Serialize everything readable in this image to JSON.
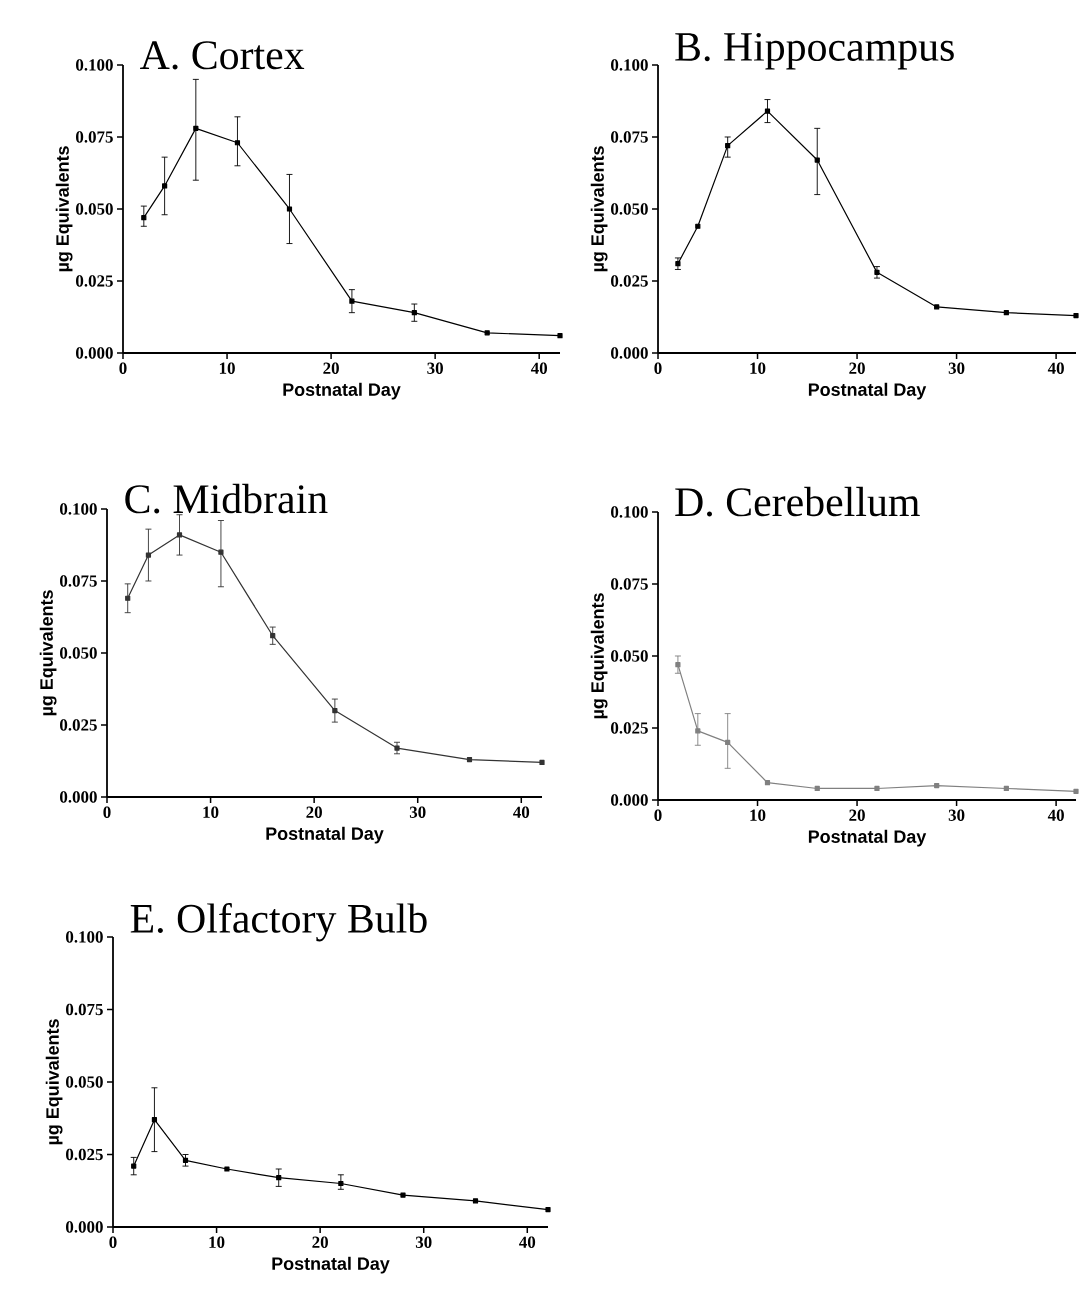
{
  "chart_data": [
    {
      "type": "line",
      "title": "A. Cortex",
      "xlabel": "Postnatal Day",
      "ylabel": "µg Equivalents",
      "color": "#000000",
      "marker": "square",
      "x": [
        2,
        4,
        7,
        11,
        16,
        22,
        28,
        35,
        42
      ],
      "values": [
        0.047,
        0.058,
        0.078,
        0.073,
        0.05,
        0.018,
        0.014,
        0.007,
        0.006
      ],
      "errors": [
        [
          0.044,
          0.051
        ],
        [
          0.048,
          0.068
        ],
        [
          0.06,
          0.095
        ],
        [
          0.065,
          0.082
        ],
        [
          0.038,
          0.062
        ],
        [
          0.014,
          0.022
        ],
        [
          0.011,
          0.017
        ],
        null,
        null
      ],
      "xlim": [
        0,
        42
      ],
      "ylim": [
        0,
        0.1
      ],
      "xticks": [
        0,
        10,
        20,
        30,
        40
      ],
      "yticks": [
        {
          "value": 0,
          "label": "0.000"
        },
        {
          "value": 0.025,
          "label": "0.025"
        },
        {
          "value": 0.05,
          "label": "0.050"
        },
        {
          "value": 0.075,
          "label": "0.075"
        },
        {
          "value": 0.1,
          "label": "0.100"
        }
      ]
    },
    {
      "type": "line",
      "title": "B. Hippocampus",
      "xlabel": "Postnatal Day",
      "ylabel": "µg Equivalents",
      "color": "#000000",
      "marker": "square",
      "x": [
        2,
        4,
        7,
        11,
        16,
        22,
        28,
        35,
        42
      ],
      "values": [
        0.031,
        0.044,
        0.072,
        0.084,
        0.067,
        0.028,
        0.016,
        0.014,
        0.013
      ],
      "errors": [
        [
          0.029,
          0.033
        ],
        null,
        [
          0.068,
          0.075
        ],
        [
          0.08,
          0.088
        ],
        [
          0.055,
          0.078
        ],
        [
          0.026,
          0.03
        ],
        null,
        null,
        null
      ],
      "xlim": [
        0,
        42
      ],
      "ylim": [
        0,
        0.1
      ],
      "xticks": [
        0,
        10,
        20,
        30,
        40
      ],
      "yticks": [
        {
          "value": 0,
          "label": "0.000"
        },
        {
          "value": 0.025,
          "label": "0.025"
        },
        {
          "value": 0.05,
          "label": "0.050"
        },
        {
          "value": 0.075,
          "label": "0.075"
        },
        {
          "value": 0.1,
          "label": "0.100"
        }
      ]
    },
    {
      "type": "line",
      "title": "C. Midbrain",
      "xlabel": "Postnatal Day",
      "ylabel": "µg Equivalents",
      "color": "#333333",
      "marker": "square",
      "x": [
        2,
        4,
        7,
        11,
        16,
        22,
        28,
        35,
        42
      ],
      "values": [
        0.069,
        0.084,
        0.091,
        0.085,
        0.056,
        0.03,
        0.017,
        0.013,
        0.012
      ],
      "errors": [
        [
          0.064,
          0.074
        ],
        [
          0.075,
          0.093
        ],
        [
          0.084,
          0.098
        ],
        [
          0.073,
          0.096
        ],
        [
          0.053,
          0.059
        ],
        [
          0.026,
          0.034
        ],
        [
          0.015,
          0.019
        ],
        null,
        null
      ],
      "xlim": [
        0,
        42
      ],
      "ylim": [
        0,
        0.1
      ],
      "xticks": [
        0,
        10,
        20,
        30,
        40
      ],
      "yticks": [
        {
          "value": 0,
          "label": "0.000"
        },
        {
          "value": 0.025,
          "label": "0.025"
        },
        {
          "value": 0.05,
          "label": "0.050"
        },
        {
          "value": 0.075,
          "label": "0.075"
        },
        {
          "value": 0.1,
          "label": "0.100"
        }
      ]
    },
    {
      "type": "line",
      "title": "D. Cerebellum",
      "xlabel": "Postnatal Day",
      "ylabel": "µg Equivalents",
      "color": "#808080",
      "marker": "square",
      "x": [
        2,
        4,
        7,
        11,
        16,
        22,
        28,
        35,
        42
      ],
      "values": [
        0.047,
        0.024,
        0.02,
        0.006,
        0.004,
        0.004,
        0.005,
        0.004,
        0.003
      ],
      "errors": [
        [
          0.044,
          0.05
        ],
        [
          0.019,
          0.03
        ],
        [
          0.011,
          0.03
        ],
        null,
        null,
        null,
        null,
        null,
        null
      ],
      "xlim": [
        0,
        42
      ],
      "ylim": [
        0,
        0.1
      ],
      "xticks": [
        0,
        10,
        20,
        30,
        40
      ],
      "yticks": [
        {
          "value": 0,
          "label": "0.000"
        },
        {
          "value": 0.025,
          "label": "0.025"
        },
        {
          "value": 0.05,
          "label": "0.050"
        },
        {
          "value": 0.075,
          "label": "0.075"
        },
        {
          "value": 0.1,
          "label": "0.100"
        }
      ]
    },
    {
      "type": "line",
      "title": "E. Olfactory Bulb",
      "xlabel": "Postnatal Day",
      "ylabel": "µg Equivalents",
      "color": "#000000",
      "marker": "square",
      "x": [
        2,
        4,
        7,
        11,
        16,
        22,
        28,
        35,
        42
      ],
      "values": [
        0.021,
        0.037,
        0.023,
        0.02,
        0.017,
        0.015,
        0.011,
        0.009,
        0.006
      ],
      "errors": [
        [
          0.018,
          0.024
        ],
        [
          0.026,
          0.048
        ],
        [
          0.021,
          0.025
        ],
        null,
        [
          0.014,
          0.02
        ],
        [
          0.013,
          0.018
        ],
        null,
        null,
        null
      ],
      "xlim": [
        0,
        42
      ],
      "ylim": [
        0,
        0.1
      ],
      "xticks": [
        0,
        10,
        20,
        30,
        40
      ],
      "yticks": [
        {
          "value": 0,
          "label": "0.000"
        },
        {
          "value": 0.025,
          "label": "0.025"
        },
        {
          "value": 0.05,
          "label": "0.050"
        },
        {
          "value": 0.075,
          "label": "0.075"
        },
        {
          "value": 0.1,
          "label": "0.100"
        }
      ]
    }
  ]
}
